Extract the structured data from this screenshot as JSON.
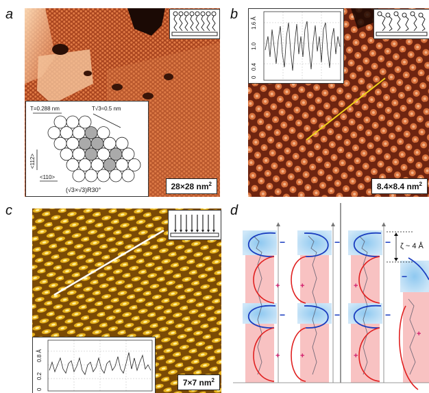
{
  "panels": {
    "a": {
      "label": "a",
      "scale": {
        "num": "28×28 nm",
        "sup": "2"
      },
      "lattice": {
        "t_label": "T=0.288 nm",
        "t3_label": "T√3≈0.5 nm",
        "dir1": "<112>",
        "dir2": "<110>",
        "phase": "(√3×√3)R30°"
      }
    },
    "b": {
      "label": "b",
      "scale": {
        "num": "8.4×8.4 nm",
        "sup": "2"
      },
      "profile_ticks": [
        "0",
        "0.4",
        "1.0",
        "1.6 Å"
      ]
    },
    "c": {
      "label": "c",
      "scale": {
        "num": "7×7 nm",
        "sup": "2"
      },
      "profile_ticks": [
        "0",
        "0.2",
        "0.8 Å"
      ]
    },
    "d": {
      "label": "d",
      "zeta_label": "ζ ~ 4 Å",
      "minus_sign": "−",
      "plus_sign": "+"
    }
  },
  "colors": {
    "stm_orange": "#b8552e",
    "stm_gold": "#c48a12",
    "blue_region": "#a9d4f2",
    "red_region": "#f6b3b3",
    "curve_blue": "#1a3dbf",
    "curve_red": "#e02020",
    "trace_yellow": "#f2d21a"
  }
}
